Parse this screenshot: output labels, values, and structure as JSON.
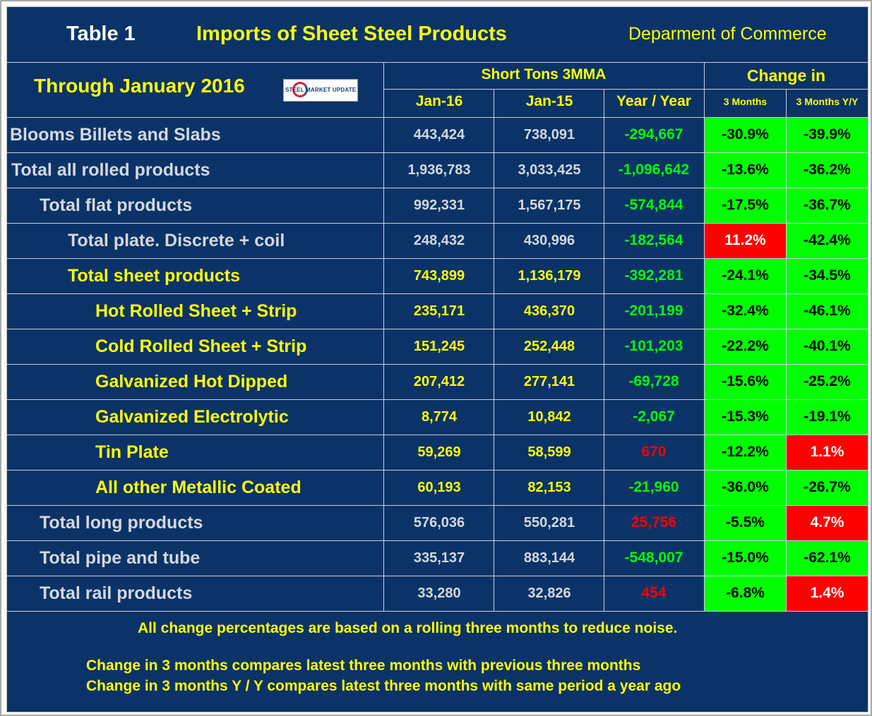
{
  "header": {
    "table_label": "Table 1",
    "title": "Imports of Sheet Steel Products",
    "source": "Deparment of Commerce",
    "through": "Through January 2016",
    "logo_text": "STEEL MARKET UPDATE",
    "group_short_tons": "Short Tons 3MMA",
    "group_change": "Change in",
    "col_jan16": "Jan-16",
    "col_jan15": "Jan-15",
    "col_yy": "Year / Year",
    "col_3m": "3 Months",
    "col_3m_yy": "3 Months Y/Y"
  },
  "colors": {
    "background": "#0b3368",
    "yellow": "#ffff00",
    "gray_text": "#d4d8de",
    "positive_green": "#00ff00",
    "negative_red": "#ff0000"
  },
  "rows": [
    {
      "label": "Blooms Billets and Slabs",
      "jan16": "443,424",
      "jan15": "738,091",
      "yy": "-294,667",
      "m3": "-30.9%",
      "m3yy": "-39.9%"
    },
    {
      "label": "Total all rolled products",
      "jan16": "1,936,783",
      "jan15": "3,033,425",
      "yy": "-1,096,642",
      "m3": "-13.6%",
      "m3yy": "-36.2%"
    },
    {
      "label": "Total flat products",
      "jan16": "992,331",
      "jan15": "1,567,175",
      "yy": "-574,844",
      "m3": "-17.5%",
      "m3yy": "-36.7%"
    },
    {
      "label": "Total plate. Discrete + coil",
      "jan16": "248,432",
      "jan15": "430,996",
      "yy": "-182,564",
      "m3": "11.2%",
      "m3yy": "-42.4%"
    },
    {
      "label": "Total sheet products",
      "jan16": "743,899",
      "jan15": "1,136,179",
      "yy": "-392,281",
      "m3": "-24.1%",
      "m3yy": "-34.5%"
    },
    {
      "label": "Hot Rolled Sheet + Strip",
      "jan16": "235,171",
      "jan15": "436,370",
      "yy": "-201,199",
      "m3": "-32.4%",
      "m3yy": "-46.1%"
    },
    {
      "label": "Cold Rolled Sheet + Strip",
      "jan16": "151,245",
      "jan15": "252,448",
      "yy": "-101,203",
      "m3": "-22.2%",
      "m3yy": "-40.1%"
    },
    {
      "label": "Galvanized Hot Dipped",
      "jan16": "207,412",
      "jan15": "277,141",
      "yy": "-69,728",
      "m3": "-15.6%",
      "m3yy": "-25.2%"
    },
    {
      "label": "Galvanized Electrolytic",
      "jan16": "8,774",
      "jan15": "10,842",
      "yy": "-2,067",
      "m3": "-15.3%",
      "m3yy": "-19.1%"
    },
    {
      "label": "Tin Plate",
      "jan16": "59,269",
      "jan15": "58,599",
      "yy": "670",
      "m3": "-12.2%",
      "m3yy": "1.1%"
    },
    {
      "label": "All other Metallic Coated",
      "jan16": "60,193",
      "jan15": "82,153",
      "yy": "-21,960",
      "m3": "-36.0%",
      "m3yy": "-26.7%"
    },
    {
      "label": "Total long products",
      "jan16": "576,036",
      "jan15": "550,281",
      "yy": "25,756",
      "m3": "-5.5%",
      "m3yy": "4.7%"
    },
    {
      "label": "Total pipe and tube",
      "jan16": "335,137",
      "jan15": "883,144",
      "yy": "-548,007",
      "m3": "-15.0%",
      "m3yy": "-62.1%"
    },
    {
      "label": "Total rail products",
      "jan16": "33,280",
      "jan15": "32,826",
      "yy": "454",
      "m3": "-6.8%",
      "m3yy": "1.4%"
    }
  ],
  "footer": {
    "note1": "All change percentages are based on a rolling three months to reduce noise.",
    "note2": "Change in 3 months compares latest three months with previous three months",
    "note3": "Change in 3 months  Y / Y compares latest three months with same period a year ago"
  }
}
